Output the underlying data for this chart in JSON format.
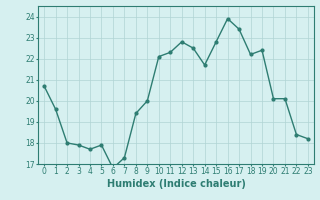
{
  "x": [
    0,
    1,
    2,
    3,
    4,
    5,
    6,
    7,
    8,
    9,
    10,
    11,
    12,
    13,
    14,
    15,
    16,
    17,
    18,
    19,
    20,
    21,
    22,
    23
  ],
  "y": [
    20.7,
    19.6,
    18.0,
    17.9,
    17.7,
    17.9,
    16.8,
    17.3,
    19.4,
    20.0,
    22.1,
    22.3,
    22.8,
    22.5,
    21.7,
    22.8,
    23.9,
    23.4,
    22.2,
    22.4,
    20.1,
    20.1,
    18.4,
    18.2
  ],
  "line_color": "#2e7d72",
  "marker": "o",
  "marker_size": 2,
  "line_width": 1.0,
  "bg_color": "#d6f0f0",
  "grid_color": "#b0d4d4",
  "xlabel": "Humidex (Indice chaleur)",
  "ylim": [
    17,
    24.5
  ],
  "xlim": [
    -0.5,
    23.5
  ],
  "yticks": [
    17,
    18,
    19,
    20,
    21,
    22,
    23,
    24
  ],
  "xticks": [
    0,
    1,
    2,
    3,
    4,
    5,
    6,
    7,
    8,
    9,
    10,
    11,
    12,
    13,
    14,
    15,
    16,
    17,
    18,
    19,
    20,
    21,
    22,
    23
  ],
  "tick_color": "#2e7d72",
  "label_color": "#2e7d72",
  "xlabel_fontsize": 7,
  "tick_fontsize": 5.5
}
